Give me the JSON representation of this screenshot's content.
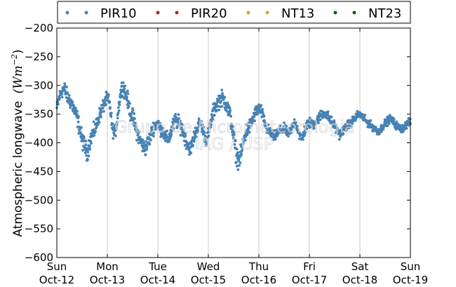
{
  "chart_data": {
    "type": "scatter",
    "title": "",
    "xlabel": "",
    "ylabel": "Atmospheric longwave",
    "ylabel_unit": "(Wm",
    "ylabel_unit_exp": "−2",
    "ylabel_unit_close": ")",
    "ylim": [
      -600,
      -200
    ],
    "yticks": [
      -200,
      -250,
      -300,
      -350,
      -400,
      -450,
      -500,
      -550,
      -600
    ],
    "ytick_labels": [
      "−200",
      "−250",
      "−300",
      "−350",
      "−400",
      "−450",
      "−500",
      "−550",
      "−600"
    ],
    "xlim": [
      "2014-10-12",
      "2014-10-19"
    ],
    "xticks": [
      {
        "day": "Sun",
        "date": "Oct-12"
      },
      {
        "day": "Mon",
        "date": "Oct-13"
      },
      {
        "day": "Tue",
        "date": "Oct-14"
      },
      {
        "day": "Wed",
        "date": "Oct-15"
      },
      {
        "day": "Thu",
        "date": "Oct-16"
      },
      {
        "day": "Fri",
        "date": "Oct-17"
      },
      {
        "day": "Sat",
        "date": "Oct-18"
      },
      {
        "day": "Sun",
        "date": "Oct-19"
      }
    ],
    "grid": "x-only",
    "legend": {
      "placement": "top",
      "entries": [
        {
          "name": "PIR10",
          "color": "#4682b4"
        },
        {
          "name": "PIR20",
          "color": "#b22222"
        },
        {
          "name": "NT13",
          "color": "#daa520"
        },
        {
          "name": "NT23",
          "color": "#006400"
        }
      ]
    },
    "watermark": [
      "Grupo de Micrometeorologia",
      "IAG / USP"
    ],
    "series": [
      {
        "name": "PIR10",
        "color": "#4682b4",
        "x_unit": "day offset from Oct-12",
        "points": [
          [
            0.0,
            -340
          ],
          [
            0.05,
            -320
          ],
          [
            0.1,
            -310
          ],
          [
            0.15,
            -305
          ],
          [
            0.2,
            -318
          ],
          [
            0.25,
            -325
          ],
          [
            0.3,
            -332
          ],
          [
            0.35,
            -345
          ],
          [
            0.4,
            -355
          ],
          [
            0.45,
            -375
          ],
          [
            0.5,
            -395
          ],
          [
            0.55,
            -405
          ],
          [
            0.6,
            -418
          ],
          [
            0.65,
            -400
          ],
          [
            0.7,
            -385
          ],
          [
            0.75,
            -378
          ],
          [
            0.8,
            -365
          ],
          [
            0.85,
            -350
          ],
          [
            0.9,
            -340
          ],
          [
            0.95,
            -330
          ],
          [
            1.0,
            -320
          ],
          [
            1.05,
            -335
          ],
          [
            1.1,
            -375
          ],
          [
            1.15,
            -385
          ],
          [
            1.2,
            -355
          ],
          [
            1.25,
            -320
          ],
          [
            1.3,
            -300
          ],
          [
            1.35,
            -310
          ],
          [
            1.4,
            -325
          ],
          [
            1.45,
            -345
          ],
          [
            1.5,
            -355
          ],
          [
            1.55,
            -370
          ],
          [
            1.6,
            -385
          ],
          [
            1.65,
            -395
          ],
          [
            1.7,
            -405
          ],
          [
            1.75,
            -410
          ],
          [
            1.8,
            -400
          ],
          [
            1.85,
            -390
          ],
          [
            1.9,
            -375
          ],
          [
            1.95,
            -370
          ],
          [
            2.0,
            -365
          ],
          [
            2.05,
            -375
          ],
          [
            2.1,
            -380
          ],
          [
            2.15,
            -390
          ],
          [
            2.2,
            -395
          ],
          [
            2.25,
            -385
          ],
          [
            2.3,
            -370
          ],
          [
            2.35,
            -360
          ],
          [
            2.4,
            -365
          ],
          [
            2.45,
            -370
          ],
          [
            2.5,
            -380
          ],
          [
            2.55,
            -395
          ],
          [
            2.6,
            -405
          ],
          [
            2.65,
            -410
          ],
          [
            2.7,
            -395
          ],
          [
            2.75,
            -380
          ],
          [
            2.8,
            -370
          ],
          [
            2.85,
            -365
          ],
          [
            2.9,
            -380
          ],
          [
            2.95,
            -395
          ],
          [
            3.0,
            -385
          ],
          [
            3.05,
            -365
          ],
          [
            3.1,
            -345
          ],
          [
            3.15,
            -335
          ],
          [
            3.2,
            -328
          ],
          [
            3.25,
            -322
          ],
          [
            3.3,
            -325
          ],
          [
            3.35,
            -330
          ],
          [
            3.4,
            -345
          ],
          [
            3.45,
            -360
          ],
          [
            3.5,
            -390
          ],
          [
            3.55,
            -420
          ],
          [
            3.6,
            -430
          ],
          [
            3.65,
            -420
          ],
          [
            3.7,
            -395
          ],
          [
            3.75,
            -380
          ],
          [
            3.8,
            -375
          ],
          [
            3.85,
            -365
          ],
          [
            3.9,
            -355
          ],
          [
            3.95,
            -345
          ],
          [
            4.0,
            -340
          ],
          [
            4.05,
            -345
          ],
          [
            4.1,
            -360
          ],
          [
            4.15,
            -375
          ],
          [
            4.2,
            -380
          ],
          [
            4.25,
            -385
          ],
          [
            4.3,
            -390
          ],
          [
            4.35,
            -385
          ],
          [
            4.4,
            -380
          ],
          [
            4.45,
            -378
          ],
          [
            4.5,
            -375
          ],
          [
            4.55,
            -380
          ],
          [
            4.6,
            -385
          ],
          [
            4.65,
            -375
          ],
          [
            4.7,
            -365
          ],
          [
            4.75,
            -370
          ],
          [
            4.8,
            -385
          ],
          [
            4.85,
            -395
          ],
          [
            4.9,
            -380
          ],
          [
            4.95,
            -370
          ],
          [
            5.0,
            -365
          ],
          [
            5.05,
            -370
          ],
          [
            5.1,
            -365
          ],
          [
            5.15,
            -360
          ],
          [
            5.2,
            -355
          ],
          [
            5.25,
            -350
          ],
          [
            5.3,
            -348
          ],
          [
            5.35,
            -352
          ],
          [
            5.4,
            -358
          ],
          [
            5.45,
            -365
          ],
          [
            5.5,
            -370
          ],
          [
            5.55,
            -380
          ],
          [
            5.6,
            -385
          ],
          [
            5.65,
            -380
          ],
          [
            5.7,
            -375
          ],
          [
            5.75,
            -370
          ],
          [
            5.8,
            -368
          ],
          [
            5.85,
            -362
          ],
          [
            5.9,
            -358
          ],
          [
            5.95,
            -352
          ],
          [
            6.0,
            -350
          ],
          [
            6.05,
            -355
          ],
          [
            6.1,
            -360
          ],
          [
            6.15,
            -365
          ],
          [
            6.2,
            -368
          ],
          [
            6.25,
            -372
          ],
          [
            6.3,
            -376
          ],
          [
            6.35,
            -380
          ],
          [
            6.4,
            -378
          ],
          [
            6.45,
            -372
          ],
          [
            6.5,
            -366
          ],
          [
            6.55,
            -362
          ],
          [
            6.6,
            -358
          ],
          [
            6.65,
            -362
          ],
          [
            6.7,
            -368
          ],
          [
            6.75,
            -372
          ],
          [
            6.8,
            -376
          ],
          [
            6.85,
            -374
          ],
          [
            6.9,
            -370
          ],
          [
            6.95,
            -366
          ],
          [
            7.0,
            -364
          ]
        ],
        "spread": [
          [
            0.0,
            30
          ],
          [
            0.5,
            40
          ],
          [
            1.0,
            30
          ],
          [
            1.5,
            40
          ],
          [
            2.0,
            30
          ],
          [
            2.5,
            35
          ],
          [
            3.0,
            30
          ],
          [
            3.5,
            45
          ],
          [
            4.0,
            28
          ],
          [
            4.5,
            22
          ],
          [
            5.0,
            25
          ],
          [
            5.5,
            22
          ],
          [
            6.0,
            18
          ],
          [
            6.5,
            18
          ],
          [
            7.0,
            18
          ]
        ]
      },
      {
        "name": "PIR20",
        "color": "#b22222",
        "points": []
      },
      {
        "name": "NT13",
        "color": "#daa520",
        "points": []
      },
      {
        "name": "NT23",
        "color": "#006400",
        "points": []
      }
    ]
  }
}
